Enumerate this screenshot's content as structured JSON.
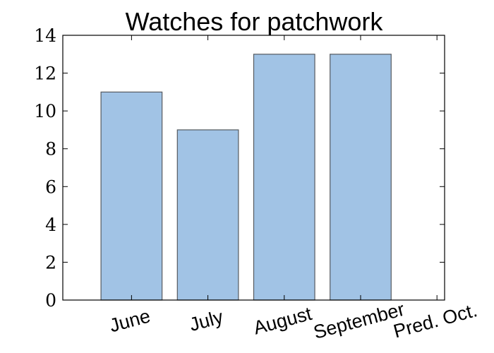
{
  "chart_data": {
    "type": "bar",
    "title": "Watches for patchwork",
    "xlabel": "",
    "ylabel": "",
    "categories": [
      "June",
      "July",
      "August",
      "September",
      "Pred. Oct."
    ],
    "values": [
      11,
      9,
      13,
      13,
      0
    ],
    "ylim": [
      0,
      14
    ],
    "yticks": [
      "0",
      "2",
      "4",
      "6",
      "8",
      "10",
      "12",
      "14"
    ],
    "grid": false,
    "legend": "none",
    "colors": {
      "bar_fill": "#a1c3e5",
      "bar_edge": "#555a60"
    }
  }
}
